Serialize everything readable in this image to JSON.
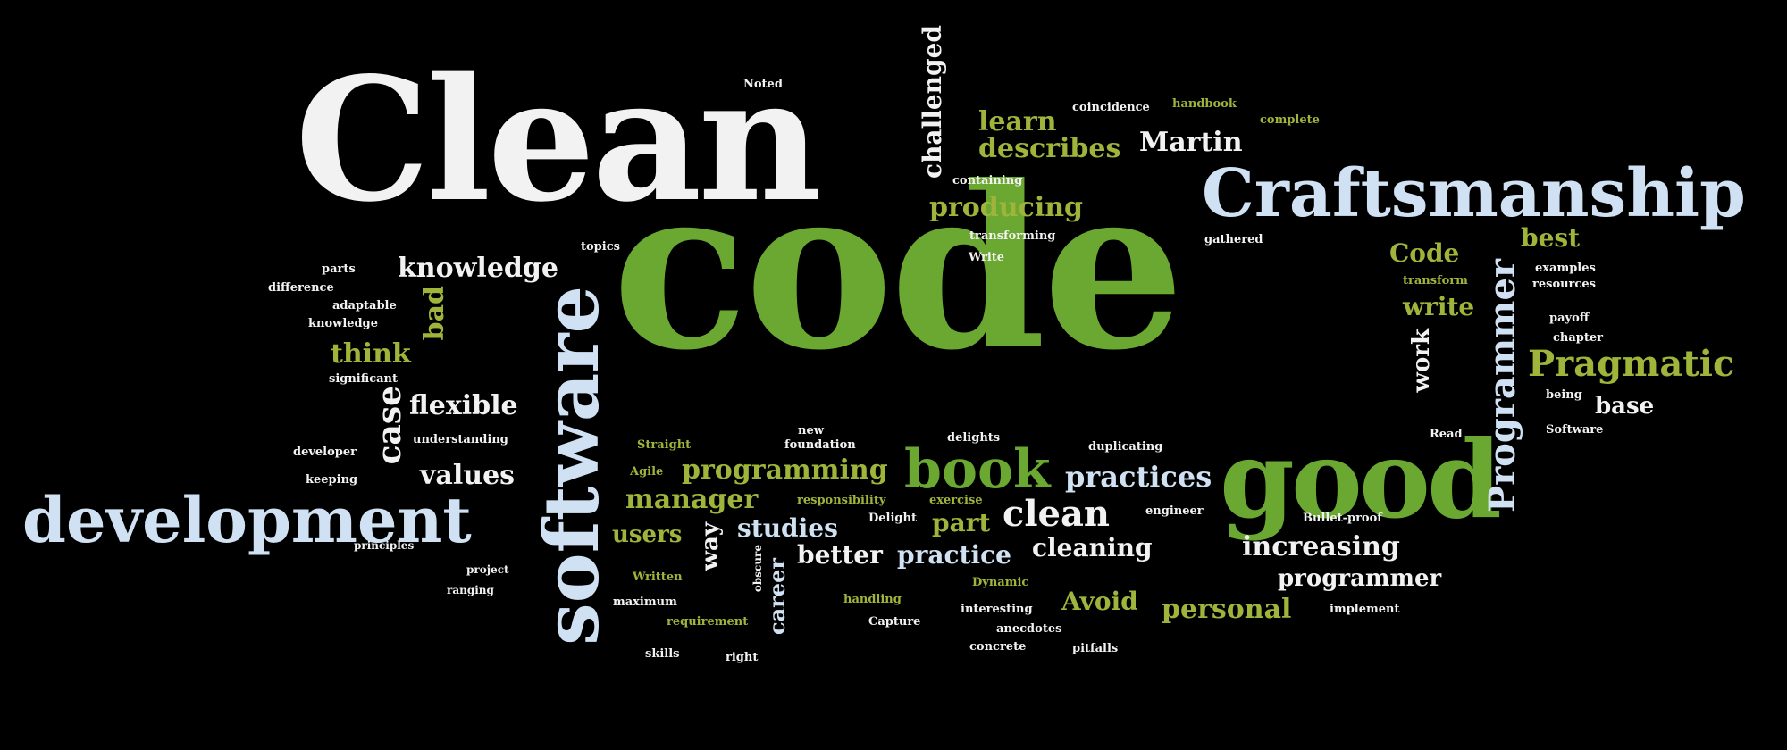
{
  "colors": {
    "background": "#000000",
    "white": "#f2f2f2",
    "green": "#6aa832",
    "olive": "#9fb43a",
    "blue": "#cfe1f2"
  },
  "words": {
    "clean_big": "Clean",
    "code_big": "code",
    "craftsmanship": "Craftsmanship",
    "development": "development",
    "software": "software",
    "good": "good",
    "book": "book",
    "programmer_v": "Programmer",
    "pragmatic": "Pragmatic",
    "knowledge": "knowledge",
    "flexible": "flexible",
    "values": "values",
    "case": "case",
    "bad": "bad",
    "think": "think",
    "programming": "programming",
    "manager": "manager",
    "studies": "studies",
    "users": "users",
    "way": "way",
    "practices": "practices",
    "clean_small": "clean",
    "part": "part",
    "better": "better",
    "practice": "practice",
    "cleaning": "cleaning",
    "increasing": "increasing",
    "programmer": "programmer",
    "avoid": "Avoid",
    "personal": "personal",
    "career": "career",
    "challenged": "challenged",
    "learn": "learn",
    "describes": "describes",
    "producing": "producing",
    "martin": "Martin",
    "code_small": "Code",
    "write": "write",
    "best": "best",
    "work": "work",
    "base": "base",
    "topics": "topics",
    "parts": "parts",
    "difference": "difference",
    "adaptable": "adaptable",
    "knowledge_small": "knowledge",
    "significant": "significant",
    "understanding": "understanding",
    "developer": "developer",
    "keeping": "keeping",
    "gathered": "gathered",
    "named": "Noted",
    "containing": "containing",
    "transforming": "transforming",
    "write_small": "Write",
    "straight": "Straight",
    "agile": "Agile",
    "new": "new",
    "foundation": "foundation",
    "delights": "delights",
    "duplicating": "duplicating",
    "responsibility": "responsibility",
    "exercise": "exercise",
    "delight": "Delight",
    "written": "Written",
    "maximum": "maximum",
    "requirement": "requirement",
    "handling": "handling",
    "capture": "Capture",
    "interesting": "interesting",
    "dynamic": "Dynamic",
    "anecdotes": "anecdotes",
    "skills": "skills",
    "right": "right",
    "pitfalls": "pitfalls",
    "engineer": "engineer",
    "bullet_proof": "Bullet-proof",
    "implement": "implement",
    "concrete": "concrete",
    "chapter": "chapter",
    "being": "being",
    "software_small": "Software",
    "read": "Read",
    "complete": "complete",
    "coincidence": "coincidence",
    "handbook": "handbook",
    "transform": "transform",
    "examples": "examples",
    "resources": "resources",
    "payoff": "payoff",
    "principles": "principles",
    "ranging": "ranging",
    "project": "project",
    "obscure": "obscure"
  }
}
